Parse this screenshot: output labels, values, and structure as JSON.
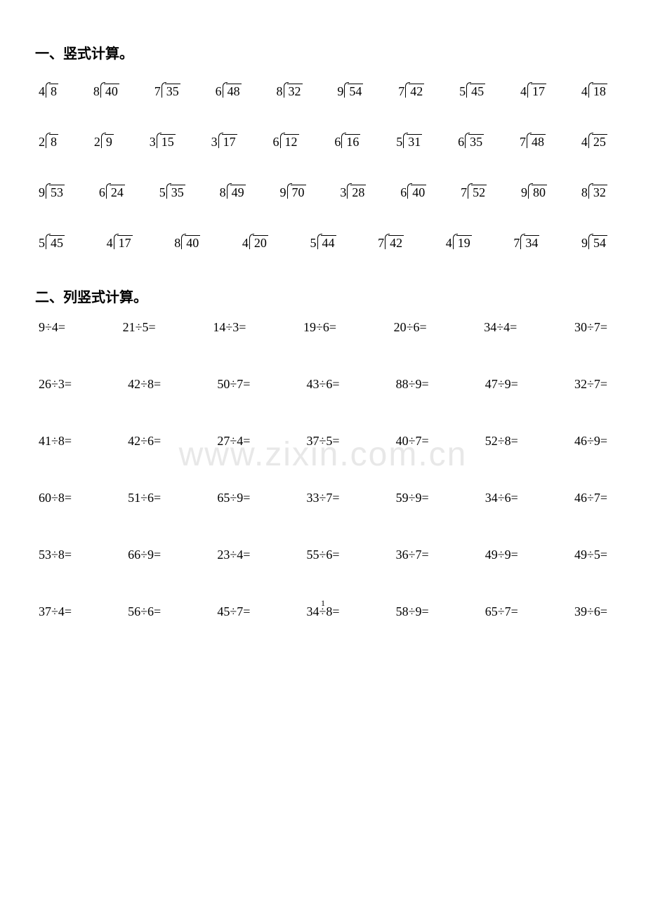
{
  "heading1": "一、竖式计算。",
  "heading2": "二、列竖式计算。",
  "watermark": "www.zixin.com.cn",
  "pageNumber": "1",
  "colors": {
    "text": "#000000",
    "background": "#ffffff",
    "watermark": "#e8e8e8"
  },
  "fonts": {
    "heading_size": 20,
    "problem_size": 18,
    "pagenum_size": 12
  },
  "longDivRows": [
    [
      {
        "divisor": "4",
        "dividend": "8"
      },
      {
        "divisor": "8",
        "dividend": "40"
      },
      {
        "divisor": "7",
        "dividend": "35"
      },
      {
        "divisor": "6",
        "dividend": "48"
      },
      {
        "divisor": "8",
        "dividend": "32"
      },
      {
        "divisor": "9",
        "dividend": "54"
      },
      {
        "divisor": "7",
        "dividend": "42"
      },
      {
        "divisor": "5",
        "dividend": "45"
      },
      {
        "divisor": "4",
        "dividend": "17"
      },
      {
        "divisor": "4",
        "dividend": "18"
      }
    ],
    [
      {
        "divisor": "2",
        "dividend": "8"
      },
      {
        "divisor": "2",
        "dividend": "9"
      },
      {
        "divisor": "3",
        "dividend": "15"
      },
      {
        "divisor": "3",
        "dividend": "17"
      },
      {
        "divisor": "6",
        "dividend": "12"
      },
      {
        "divisor": "6",
        "dividend": "16"
      },
      {
        "divisor": "5",
        "dividend": "31"
      },
      {
        "divisor": "6",
        "dividend": "35"
      },
      {
        "divisor": "7",
        "dividend": "48"
      },
      {
        "divisor": "4",
        "dividend": "25"
      }
    ],
    [
      {
        "divisor": "9",
        "dividend": "53"
      },
      {
        "divisor": "6",
        "dividend": "24"
      },
      {
        "divisor": "5",
        "dividend": "35"
      },
      {
        "divisor": "8",
        "dividend": "49"
      },
      {
        "divisor": "9",
        "dividend": "70"
      },
      {
        "divisor": "3",
        "dividend": "28"
      },
      {
        "divisor": "6",
        "dividend": "40"
      },
      {
        "divisor": "7",
        "dividend": "52"
      },
      {
        "divisor": "9",
        "dividend": "80"
      },
      {
        "divisor": "8",
        "dividend": "32"
      }
    ],
    [
      {
        "divisor": "5",
        "dividend": "45"
      },
      {
        "divisor": "4",
        "dividend": "17"
      },
      {
        "divisor": "8",
        "dividend": "40"
      },
      {
        "divisor": "4",
        "dividend": "20"
      },
      {
        "divisor": "5",
        "dividend": "44"
      },
      {
        "divisor": "7",
        "dividend": "42"
      },
      {
        "divisor": "4",
        "dividend": "19"
      },
      {
        "divisor": "7",
        "dividend": "34"
      },
      {
        "divisor": "9",
        "dividend": "54"
      }
    ]
  ],
  "horizRows": [
    [
      "9÷4=",
      "21÷5=",
      "14÷3=",
      "19÷6=",
      "20÷6=",
      "34÷4=",
      "30÷7="
    ],
    [
      "26÷3=",
      "42÷8=",
      "50÷7=",
      "43÷6=",
      "88÷9=",
      "47÷9=",
      "32÷7="
    ],
    [
      "41÷8=",
      "42÷6=",
      "27÷4=",
      "37÷5=",
      "40÷7=",
      "52÷8=",
      "46÷9="
    ],
    [
      "60÷8=",
      "51÷6=",
      "65÷9=",
      "33÷7=",
      "59÷9=",
      "34÷6=",
      "46÷7="
    ],
    [
      "53÷8=",
      "66÷9=",
      "23÷4=",
      "55÷6=",
      "36÷7=",
      "49÷9=",
      "49÷5="
    ],
    [
      "37÷4=",
      "56÷6=",
      "45÷7=",
      "34÷8=",
      "58÷9=",
      "65÷7=",
      "39÷6="
    ]
  ]
}
